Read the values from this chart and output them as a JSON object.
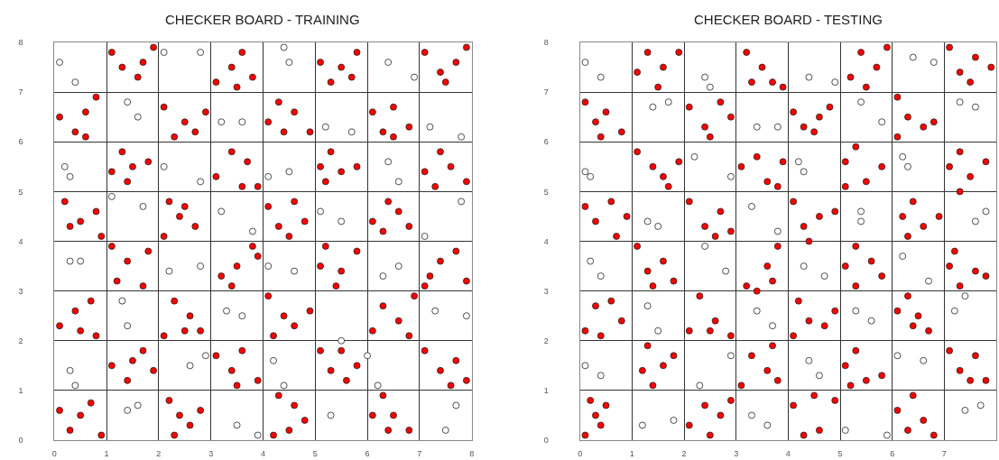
{
  "chart_data": [
    {
      "type": "scatter",
      "title": "CHECKER BOARD - TRAINING",
      "xlim": [
        0,
        8
      ],
      "ylim": [
        0,
        8
      ],
      "xticks": [
        0,
        1,
        2,
        3,
        4,
        5,
        6,
        7,
        8
      ],
      "yticks": [
        0,
        1,
        2,
        3,
        4,
        5,
        6,
        7,
        8
      ],
      "grid": true,
      "marker": "circle",
      "series": [
        {
          "color": "#ff0000",
          "x": [
            0.5,
            0.7,
            0.3,
            0.1,
            0.9,
            2.2,
            2.4,
            2.8,
            2.6,
            2.3,
            4.3,
            4.5,
            4.8,
            4.2,
            4.6,
            6.1,
            6.5,
            6.3,
            6.8,
            6.4,
            1.1,
            1.4,
            1.7,
            1.9,
            1.5,
            3.1,
            3.4,
            3.6,
            3.9,
            3.5,
            5.1,
            5.3,
            5.6,
            5.8,
            5.5,
            7.1,
            7.4,
            7.7,
            7.9,
            7.6,
            0.1,
            0.4,
            0.7,
            0.8,
            0.5,
            2.1,
            2.3,
            2.6,
            2.8,
            2.5,
            4.1,
            4.4,
            4.6,
            4.9,
            4.2,
            6.1,
            6.3,
            6.6,
            6.9,
            6.8,
            1.1,
            1.4,
            1.8,
            1.2,
            1.7,
            3.2,
            3.5,
            3.9,
            3.4,
            3.8,
            5.2,
            5.1,
            5.5,
            5.8,
            5.4,
            7.2,
            7.4,
            7.7,
            7.9,
            7.1,
            0.2,
            0.5,
            0.8,
            0.3,
            0.9,
            2.2,
            2.4,
            2.7,
            2.5,
            2.1,
            4.1,
            4.3,
            4.6,
            4.8,
            4.5,
            6.1,
            6.3,
            6.6,
            6.8,
            6.4,
            1.1,
            1.3,
            1.5,
            1.8,
            1.4,
            3.1,
            3.4,
            3.7,
            3.9,
            3.6,
            5.1,
            5.3,
            5.5,
            5.8,
            5.2,
            7.1,
            7.4,
            7.6,
            7.9,
            7.3,
            0.1,
            0.4,
            0.6,
            0.8,
            0.6,
            2.1,
            2.5,
            2.7,
            2.9,
            2.3,
            4.1,
            4.3,
            4.6,
            4.9,
            4.4,
            6.1,
            6.3,
            6.5,
            6.8,
            6.5,
            1.1,
            1.3,
            1.6,
            1.9,
            1.7,
            3.1,
            3.4,
            3.6,
            3.8,
            3.5,
            5.1,
            5.3,
            5.5,
            5.8,
            5.7,
            7.1,
            7.4,
            7.7,
            7.9,
            7.5
          ],
          "values": [
            0.5,
            0.75,
            0.2,
            0.6,
            0.1,
            0.8,
            0.5,
            0.6,
            0.3,
            0.1,
            0.9,
            0.2,
            0.4,
            0.1,
            0.7,
            0.5,
            0.5,
            0.9,
            0.2,
            0.2,
            1.5,
            1.2,
            1.8,
            1.4,
            1.6,
            1.7,
            1.4,
            1.8,
            1.2,
            1.1,
            1.8,
            1.4,
            1.2,
            1.5,
            1.8,
            1.8,
            1.4,
            1.6,
            1.2,
            1.1,
            2.3,
            2.6,
            2.8,
            2.1,
            2.2,
            2.1,
            2.8,
            2.5,
            2.2,
            2.2,
            2.9,
            2.5,
            2.3,
            2.6,
            2.1,
            2.2,
            2.7,
            2.4,
            2.9,
            2.1,
            3.9,
            3.6,
            3.8,
            3.2,
            3.1,
            3.3,
            3.5,
            3.7,
            3.1,
            3.9,
            3.9,
            3.5,
            3.4,
            3.8,
            3.1,
            3.3,
            3.6,
            3.8,
            3.2,
            3.1,
            4.8,
            4.4,
            4.6,
            4.3,
            4.1,
            4.8,
            4.5,
            4.3,
            4.7,
            4.1,
            4.7,
            4.3,
            4.8,
            4.4,
            4.1,
            4.4,
            4.2,
            4.6,
            4.3,
            4.8,
            5.4,
            5.8,
            5.5,
            5.6,
            5.2,
            5.3,
            5.8,
            5.6,
            5.1,
            5.1,
            5.5,
            5.8,
            5.4,
            5.5,
            5.2,
            5.4,
            5.8,
            5.5,
            5.2,
            5.1,
            6.5,
            6.2,
            6.6,
            6.9,
            6.1,
            6.7,
            6.4,
            6.2,
            6.6,
            6.1,
            6.4,
            6.8,
            6.6,
            6.2,
            6.2,
            6.6,
            6.2,
            6.7,
            6.3,
            6.1,
            7.8,
            7.5,
            7.3,
            7.9,
            7.6,
            7.2,
            7.5,
            7.8,
            7.3,
            7.1,
            7.6,
            7.2,
            7.5,
            7.8,
            7.3,
            7.8,
            7.4,
            7.6,
            7.9,
            7.2
          ]
        },
        {
          "color": "#ffffff",
          "x": [
            1.4,
            1.6,
            3.5,
            3.9,
            5.3,
            7.7,
            7.5,
            0.3,
            0.4,
            2.6,
            2.9,
            4.2,
            4.4,
            6.0,
            6.2,
            1.3,
            1.4,
            3.3,
            3.6,
            5.5,
            7.3,
            7.9,
            0.3,
            0.5,
            2.2,
            2.8,
            4.1,
            4.6,
            6.3,
            6.6,
            1.1,
            1.7,
            3.2,
            3.8,
            5.1,
            5.5,
            7.1,
            7.8,
            0.2,
            0.3,
            2.1,
            2.8,
            4.1,
            4.5,
            6.4,
            6.6,
            1.4,
            1.6,
            3.2,
            3.6,
            5.2,
            5.7,
            7.2,
            7.8,
            0.4,
            0.1,
            2.1,
            2.8,
            4.5,
            4.4,
            6.4,
            6.9
          ],
          "values": [
            0.6,
            0.7,
            0.3,
            0.1,
            0.5,
            0.7,
            0.2,
            1.4,
            1.1,
            1.5,
            1.7,
            1.6,
            1.1,
            1.7,
            1.1,
            2.8,
            2.3,
            2.6,
            2.5,
            2.0,
            2.6,
            2.5,
            3.6,
            3.6,
            3.4,
            3.5,
            3.5,
            3.4,
            3.3,
            3.5,
            4.9,
            4.7,
            4.6,
            4.2,
            4.6,
            4.4,
            4.1,
            4.8,
            5.5,
            5.3,
            5.5,
            5.2,
            5.3,
            5.4,
            5.6,
            5.2,
            6.8,
            6.5,
            6.4,
            6.4,
            6.3,
            6.2,
            6.3,
            6.1,
            7.2,
            7.6,
            7.8,
            7.8,
            7.6,
            7.9,
            7.6,
            7.3
          ]
        }
      ]
    },
    {
      "type": "scatter",
      "title": "CHECKER BOARD - TESTING",
      "xlim": [
        0,
        8
      ],
      "ylim": [
        0,
        8
      ],
      "xticks": [
        0,
        1,
        2,
        3,
        4,
        5,
        6,
        7
      ],
      "yticks": [
        0,
        1,
        2,
        3,
        4,
        5,
        6,
        7,
        8
      ],
      "grid": true,
      "marker": "circle",
      "series": [
        {
          "color": "#ff0000",
          "x": [
            0.1,
            0.3,
            0.5,
            0.4,
            0.2,
            2.1,
            2.4,
            2.7,
            2.5,
            2.9,
            4.1,
            4.3,
            4.6,
            4.9,
            4.5,
            6.1,
            6.3,
            6.6,
            6.8,
            6.4,
            1.2,
            1.4,
            1.6,
            1.8,
            1.3,
            3.1,
            3.3,
            3.6,
            3.8,
            3.7,
            5.1,
            5.3,
            5.5,
            5.8,
            5.2,
            7.1,
            7.3,
            7.6,
            7.8,
            7.5,
            0.1,
            0.3,
            0.6,
            0.8,
            0.4,
            2.1,
            2.3,
            2.6,
            2.9,
            2.5,
            4.2,
            4.4,
            4.7,
            4.9,
            4.1,
            6.1,
            6.3,
            6.5,
            6.7,
            6.4,
            1.1,
            1.3,
            1.6,
            1.8,
            1.4,
            3.2,
            3.6,
            3.8,
            3.7,
            3.4,
            5.1,
            5.3,
            5.6,
            5.8,
            5.3,
            7.1,
            7.3,
            7.6,
            7.8,
            7.2,
            0.1,
            0.3,
            0.6,
            0.9,
            0.7,
            2.1,
            2.4,
            2.7,
            2.6,
            2.9,
            4.1,
            4.3,
            4.6,
            4.9,
            4.4,
            6.2,
            6.4,
            6.6,
            6.9,
            6.3,
            1.1,
            1.4,
            1.6,
            1.9,
            1.7,
            3.1,
            3.4,
            3.6,
            3.9,
            3.8,
            5.1,
            5.3,
            5.5,
            5.8,
            5.1,
            7.1,
            7.3,
            7.5,
            7.8,
            7.3,
            0.1,
            0.3,
            0.5,
            0.8,
            0.4,
            2.1,
            2.4,
            2.7,
            2.9,
            2.5,
            4.1,
            4.3,
            4.6,
            4.8,
            4.5,
            6.1,
            6.3,
            6.6,
            6.8,
            6.1,
            1.1,
            1.3,
            1.6,
            1.9,
            1.5,
            3.2,
            3.5,
            3.7,
            3.9,
            3.3,
            5.2,
            5.4,
            5.7,
            5.9,
            5.5,
            7.1,
            7.3,
            7.6,
            7.9,
            7.5
          ],
          "values": [
            0.1,
            0.5,
            0.7,
            0.3,
            0.8,
            0.3,
            0.7,
            0.5,
            0.1,
            0.8,
            0.7,
            0.1,
            0.2,
            0.8,
            0.9,
            0.6,
            0.2,
            0.4,
            0.1,
            0.9,
            1.4,
            1.1,
            1.5,
            1.7,
            1.9,
            1.1,
            1.7,
            1.4,
            1.2,
            1.9,
            1.5,
            1.8,
            1.2,
            1.3,
            1.1,
            1.8,
            1.4,
            1.7,
            1.2,
            1.2,
            2.2,
            2.7,
            2.8,
            2.4,
            2.1,
            2.2,
            2.9,
            2.4,
            2.1,
            2.2,
            2.8,
            2.4,
            2.3,
            2.6,
            2.1,
            2.6,
            2.9,
            2.5,
            2.2,
            2.3,
            3.9,
            3.4,
            3.6,
            3.2,
            3.1,
            3.1,
            3.5,
            3.9,
            3.2,
            3.0,
            3.5,
            3.9,
            3.6,
            3.3,
            3.1,
            3.5,
            3.1,
            3.4,
            3.3,
            3.8,
            4.7,
            4.4,
            4.8,
            4.5,
            4.1,
            4.8,
            4.3,
            4.6,
            4.1,
            4.2,
            4.8,
            4.3,
            4.5,
            4.6,
            4.0,
            4.5,
            4.8,
            4.3,
            4.5,
            4.1,
            5.8,
            5.5,
            5.3,
            5.6,
            5.1,
            5.5,
            5.7,
            5.2,
            5.6,
            5.1,
            5.6,
            5.9,
            5.2,
            5.5,
            5.1,
            5.5,
            5.8,
            5.3,
            5.6,
            5.0,
            6.8,
            6.4,
            6.6,
            6.2,
            6.1,
            6.7,
            6.3,
            6.8,
            6.5,
            6.1,
            6.6,
            6.3,
            6.5,
            6.7,
            6.2,
            6.9,
            6.5,
            6.3,
            6.4,
            6.1,
            7.4,
            7.8,
            7.5,
            7.8,
            7.1,
            7.8,
            7.5,
            7.2,
            7.1,
            7.2,
            7.3,
            7.8,
            7.5,
            7.9,
            7.1,
            7.9,
            7.4,
            7.7,
            7.5,
            7.2
          ]
        },
        {
          "color": "#ffffff",
          "x": [
            1.2,
            1.8,
            3.3,
            3.6,
            5.1,
            5.9,
            7.4,
            7.7,
            0.1,
            0.4,
            2.3,
            2.9,
            4.4,
            4.6,
            6.1,
            6.6,
            1.3,
            1.5,
            3.4,
            3.7,
            5.3,
            5.6,
            7.2,
            7.4,
            0.2,
            0.4,
            2.4,
            2.8,
            4.3,
            4.7,
            6.2,
            6.7,
            1.3,
            1.5,
            3.3,
            3.8,
            5.4,
            5.4,
            7.6,
            7.8,
            0.1,
            0.2,
            2.2,
            2.9,
            4.2,
            4.3,
            6.2,
            6.3,
            1.4,
            1.7,
            3.4,
            3.8,
            5.4,
            5.8,
            7.3,
            7.6,
            0.1,
            0.4,
            2.4,
            2.5,
            4.4,
            4.9,
            6.4,
            6.8
          ],
          "values": [
            0.3,
            0.4,
            0.5,
            0.3,
            0.2,
            0.1,
            0.6,
            0.7,
            1.5,
            1.3,
            1.1,
            1.7,
            1.6,
            1.3,
            1.7,
            1.6,
            2.7,
            2.2,
            2.6,
            2.3,
            2.6,
            2.4,
            2.6,
            2.9,
            3.6,
            3.3,
            3.9,
            3.4,
            3.5,
            3.3,
            3.7,
            3.2,
            4.4,
            4.3,
            4.7,
            4.2,
            4.6,
            4.4,
            4.4,
            4.6,
            5.4,
            5.3,
            5.7,
            5.3,
            5.6,
            5.4,
            5.7,
            5.5,
            6.7,
            6.8,
            6.3,
            6.3,
            6.8,
            6.4,
            6.8,
            6.7,
            7.6,
            7.3,
            7.3,
            7.1,
            7.3,
            7.2,
            7.7,
            7.6
          ]
        }
      ]
    }
  ]
}
